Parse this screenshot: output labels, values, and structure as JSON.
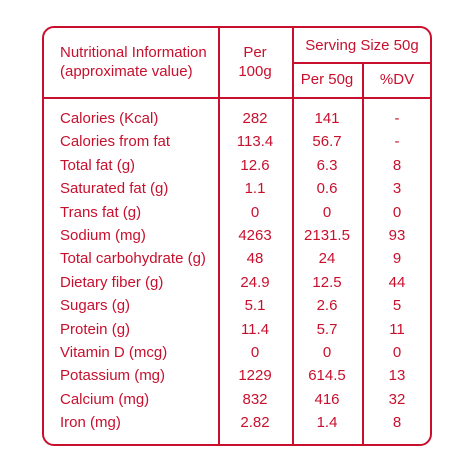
{
  "colors": {
    "accent": "#c8102e",
    "background": "#ffffff"
  },
  "header": {
    "nutrition_title": "Nutritional Information",
    "nutrition_subtitle": "(approximate value)",
    "per_label": "Per",
    "per_amount": "100g",
    "serving_size": "Serving Size 50g",
    "per_serving": "Per 50g",
    "dv": "%DV"
  },
  "rows": [
    {
      "name": "Calories (Kcal)",
      "per100": "282",
      "per50": "141",
      "dv": "-"
    },
    {
      "name": "Calories from fat",
      "per100": "113.4",
      "per50": "56.7",
      "dv": "-"
    },
    {
      "name": "Total fat (g)",
      "per100": "12.6",
      "per50": "6.3",
      "dv": "8"
    },
    {
      "name": "Saturated fat (g)",
      "per100": "1.1",
      "per50": "0.6",
      "dv": "3"
    },
    {
      "name": "Trans fat (g)",
      "per100": "0",
      "per50": "0",
      "dv": "0"
    },
    {
      "name": "Sodium (mg)",
      "per100": "4263",
      "per50": "2131.5",
      "dv": "93"
    },
    {
      "name": "Total carbohydrate (g)",
      "per100": "48",
      "per50": "24",
      "dv": "9"
    },
    {
      "name": "Dietary fiber (g)",
      "per100": "24.9",
      "per50": "12.5",
      "dv": "44"
    },
    {
      "name": "Sugars (g)",
      "per100": "5.1",
      "per50": "2.6",
      "dv": "5"
    },
    {
      "name": "Protein (g)",
      "per100": "11.4",
      "per50": "5.7",
      "dv": "11"
    },
    {
      "name": "Vitamin D (mcg)",
      "per100": "0",
      "per50": "0",
      "dv": "0"
    },
    {
      "name": "Potassium (mg)",
      "per100": "1229",
      "per50": "614.5",
      "dv": "13"
    },
    {
      "name": "Calcium (mg)",
      "per100": "832",
      "per50": "416",
      "dv": "32"
    },
    {
      "name": "Iron (mg)",
      "per100": "2.82",
      "per50": "1.4",
      "dv": "8"
    }
  ]
}
